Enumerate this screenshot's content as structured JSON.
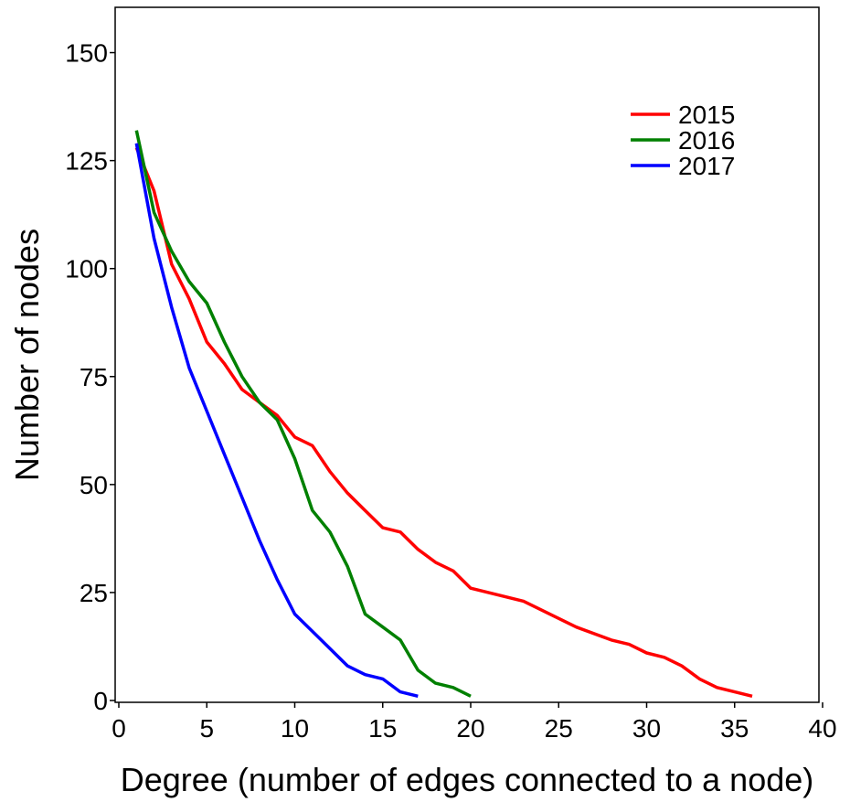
{
  "chart_data": {
    "type": "line",
    "title": "",
    "xlabel": "Degree (number of edges connected to a node)",
    "ylabel": "Number of nodes",
    "xlim": [
      0,
      40
    ],
    "ylim": [
      0,
      160
    ],
    "xticks": [
      0,
      5,
      10,
      15,
      20,
      25,
      30,
      35,
      40
    ],
    "yticks": [
      0,
      25,
      50,
      75,
      100,
      125,
      150
    ],
    "grid": false,
    "legend_position": "top-right",
    "series": [
      {
        "name": "2015",
        "color": "#ff0000",
        "x": [
          1,
          2,
          3,
          4,
          5,
          6,
          7,
          8,
          9,
          10,
          11,
          12,
          13,
          14,
          15,
          16,
          17,
          18,
          19,
          20,
          23,
          26,
          28,
          29,
          30,
          31,
          32,
          33,
          34,
          35,
          36
        ],
        "y": [
          128,
          118,
          101,
          93,
          83,
          78,
          72,
          69,
          66,
          61,
          59,
          53,
          48,
          44,
          40,
          39,
          35,
          32,
          30,
          26,
          23,
          17,
          14,
          13,
          11,
          10,
          8,
          5,
          3,
          2,
          1
        ]
      },
      {
        "name": "2016",
        "color": "#008000",
        "x": [
          1,
          2,
          3,
          4,
          5,
          6,
          7,
          8,
          9,
          10,
          11,
          12,
          13,
          14,
          15,
          16,
          17,
          18,
          19,
          20
        ],
        "y": [
          132,
          113,
          104,
          97,
          92,
          83,
          75,
          69,
          65,
          56,
          44,
          39,
          31,
          20,
          17,
          14,
          7,
          4,
          3,
          1
        ]
      },
      {
        "name": "2017",
        "color": "#0000ff",
        "x": [
          1,
          2,
          3,
          4,
          5,
          6,
          7,
          8,
          9,
          10,
          11,
          12,
          13,
          14,
          15,
          16,
          17
        ],
        "y": [
          129,
          107,
          91,
          77,
          67,
          57,
          47,
          37,
          28,
          20,
          16,
          12,
          8,
          6,
          5,
          2,
          1
        ]
      }
    ]
  }
}
